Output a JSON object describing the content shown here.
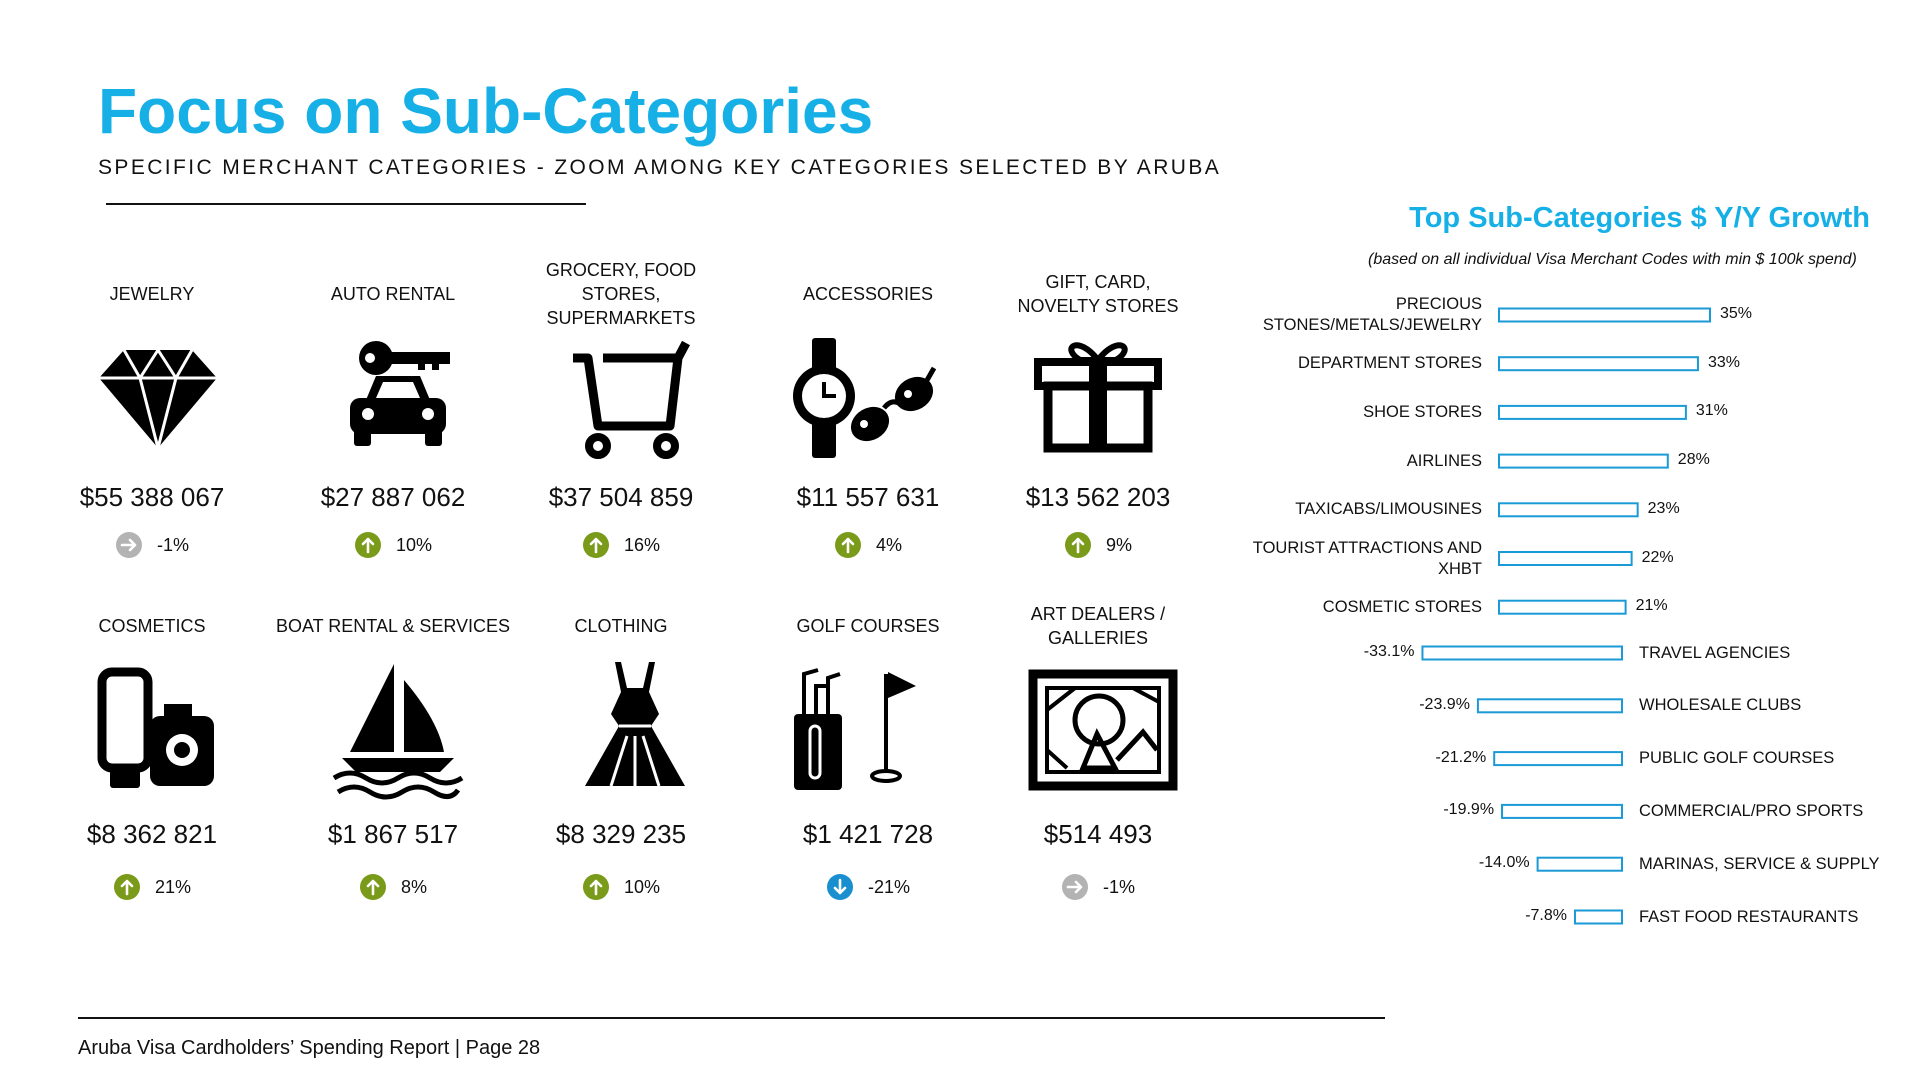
{
  "header": {
    "title": "Focus on Sub-Categories",
    "subtitle": "SPECIFIC MERCHANT CATEGORIES - ZOOM AMONG KEY CATEGORIES SELECTED BY ARUBA"
  },
  "tiles": [
    {
      "label": "JEWELRY",
      "amount": "$55 388 067",
      "growth": "-1%",
      "trend": "flat"
    },
    {
      "label": "AUTO RENTAL",
      "amount": "$27 887 062",
      "growth": "10%",
      "trend": "up"
    },
    {
      "label": "GROCERY, FOOD STORES, SUPERMARKETS",
      "amount": "$37 504 859",
      "growth": "16%",
      "trend": "up"
    },
    {
      "label": "ACCESSORIES",
      "amount": "$11 557 631",
      "growth": "4%",
      "trend": "up"
    },
    {
      "label": "GIFT, CARD, NOVELTY STORES",
      "amount": "$13 562 203",
      "growth": "9%",
      "trend": "up"
    },
    {
      "label": "COSMETICS",
      "amount": "$8 362 821",
      "growth": "21%",
      "trend": "up"
    },
    {
      "label": "BOAT RENTAL & SERVICES",
      "amount": "$1 867 517",
      "growth": "8%",
      "trend": "up"
    },
    {
      "label": "CLOTHING",
      "amount": "$8 329 235",
      "growth": "10%",
      "trend": "up"
    },
    {
      "label": "GOLF COURSES",
      "amount": "$1 421 728",
      "growth": "-21%",
      "trend": "down"
    },
    {
      "label": "ART DEALERS / GALLERIES",
      "amount": "$514 493",
      "growth": "-1%",
      "trend": "flat"
    }
  ],
  "chart_data": {
    "type": "bar",
    "orientation": "horizontal",
    "title": "Top Sub-Categories $ Y/Y Growth",
    "note": "(based on all individual Visa Merchant Codes with min  $ 100k spend)",
    "categories": [
      "PRECIOUS STONES/METALS/JEWELRY",
      "DEPARTMENT STORES",
      "SHOE STORES",
      "AIRLINES",
      "TAXICABS/LIMOUSINES",
      "TOURIST ATTRACTIONS AND XHBT",
      "COSMETIC STORES",
      "TRAVEL AGENCIES",
      "WHOLESALE CLUBS",
      "PUBLIC GOLF COURSES",
      "COMMERCIAL/PRO SPORTS",
      "MARINAS, SERVICE & SUPPLY",
      "FAST FOOD RESTAURANTS"
    ],
    "values": [
      35,
      33,
      31,
      28,
      23,
      22,
      21,
      -33.1,
      -23.9,
      -21.2,
      -19.9,
      -14.0,
      -7.8
    ],
    "value_labels": [
      "35%",
      "33%",
      "31%",
      "28%",
      "23%",
      "22%",
      "21%",
      "-33.1%",
      "-23.9%",
      "-21.2%",
      "-19.9%",
      "-14.0%",
      "-7.8%"
    ],
    "color": "#1a9ad6"
  },
  "footer": {
    "text": "Aruba Visa Cardholders’ Spending Report | Page 28"
  }
}
